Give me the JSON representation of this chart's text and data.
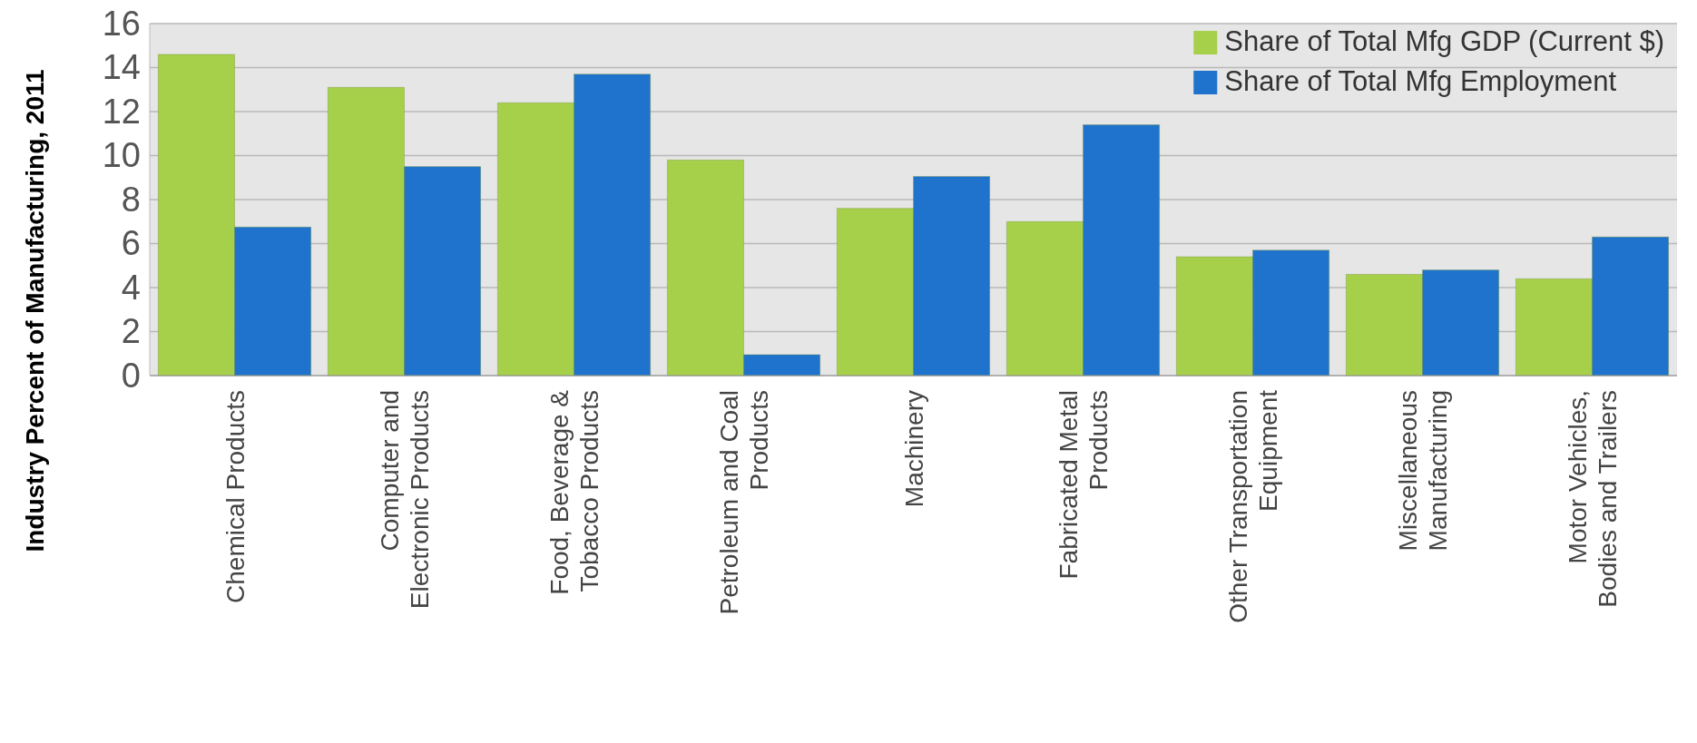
{
  "chart_data": {
    "type": "bar",
    "ylabel": "Industry Percent of Manufacturing, 2011",
    "categories": [
      "Chemical Products",
      "Computer and Electronic Products",
      "Food, Beverage & Tobacco Products",
      "Petroleum and Coal Products",
      "Machinery",
      "Fabricated Metal Products",
      "Other Transportation Equipment",
      "Miscellaneous Manufacturing",
      "Motor Vehicles, Bodies and Trailers"
    ],
    "series": [
      {
        "name": "Share of Total Mfg GDP (Current $)",
        "color": "#a6d04a",
        "values": [
          14.6,
          13.1,
          12.4,
          9.8,
          7.6,
          7.0,
          5.4,
          4.6,
          4.4
        ]
      },
      {
        "name": "Share of Total Mfg Employment",
        "color": "#1f73cc",
        "values": [
          6.75,
          9.5,
          13.7,
          0.95,
          9.05,
          11.4,
          5.7,
          4.8,
          6.3
        ]
      }
    ],
    "ylim": [
      0,
      16
    ],
    "yticks": [
      0,
      2,
      4,
      6,
      8,
      10,
      12,
      14,
      16
    ],
    "grid": "y",
    "legend": "top right"
  }
}
